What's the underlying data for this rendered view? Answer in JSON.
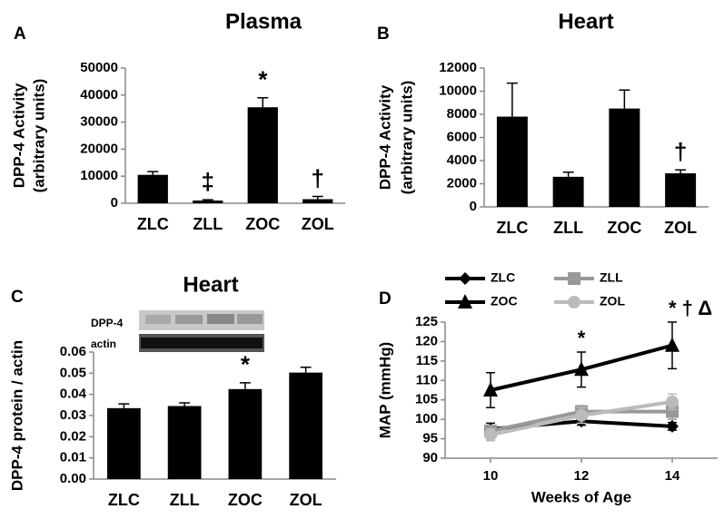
{
  "chart_data": [
    {
      "type": "bar",
      "panel": "A",
      "title": "Plasma",
      "ylabel": [
        "DPP-4 Activity",
        "(arbitrary units)"
      ],
      "categories": [
        "ZLC",
        "ZLL",
        "ZOC",
        "ZOL"
      ],
      "values": [
        10500,
        1000,
        35500,
        1500
      ],
      "errors": [
        1200,
        300,
        3500,
        1000
      ],
      "annotations": [
        null,
        "‡",
        "*",
        "†"
      ],
      "color": "#000000",
      "ylim": [
        0,
        50000
      ],
      "yticks": [
        0,
        10000,
        20000,
        30000,
        40000,
        50000
      ]
    },
    {
      "type": "bar",
      "panel": "B",
      "title": "Heart",
      "ylabel": [
        "DPP-4 Activity",
        "(arbitrary units)"
      ],
      "categories": [
        "ZLC",
        "ZLL",
        "ZOC",
        "ZOL"
      ],
      "values": [
        7800,
        2600,
        8500,
        2900
      ],
      "errors": [
        2900,
        400,
        1600,
        300
      ],
      "annotations": [
        null,
        null,
        null,
        "†"
      ],
      "color": "#000000",
      "ylim": [
        0,
        12000
      ],
      "yticks": [
        0,
        2000,
        4000,
        6000,
        8000,
        10000,
        12000
      ]
    },
    {
      "type": "bar",
      "panel": "C",
      "title": "Heart",
      "ylabel": [
        "DPP-4  protein / actin"
      ],
      "blot_labels": [
        "DPP-4",
        "actin"
      ],
      "categories": [
        "ZLC",
        "ZLL",
        "ZOC",
        "ZOL"
      ],
      "values": [
        0.0335,
        0.0345,
        0.0425,
        0.0503
      ],
      "errors": [
        0.002,
        0.0015,
        0.003,
        0.0025
      ],
      "annotations": [
        null,
        null,
        "*",
        null
      ],
      "color": "#000000",
      "ylim": [
        0,
        0.06
      ],
      "yticks": [
        {
          "value": 0,
          "label": "0.00"
        },
        0.01,
        0.02,
        0.03,
        0.04,
        0.05,
        0.06
      ]
    },
    {
      "type": "line",
      "panel": "D",
      "ylabel": [
        "MAP (mmHg)"
      ],
      "xlabel": "Weeks of Age",
      "x": [
        10,
        12,
        14
      ],
      "xlim": [
        9,
        15
      ],
      "xticks": [
        10,
        12,
        14
      ],
      "ylim": [
        90,
        125
      ],
      "yticks": [
        90,
        95,
        100,
        105,
        110,
        115,
        120,
        125
      ],
      "annotations": [
        null,
        "*",
        "* † Δ"
      ],
      "series": [
        {
          "name": "ZLC",
          "color": "#000000",
          "marker": "diamond",
          "values": [
            97.5,
            99.5,
            98.2
          ],
          "errors": [
            1.5,
            1,
            1
          ]
        },
        {
          "name": "ZLL",
          "color": "#999999",
          "marker": "square",
          "values": [
            97,
            102,
            102
          ],
          "errors": [
            1.5,
            1.5,
            2
          ]
        },
        {
          "name": "ZOC",
          "color": "#000000",
          "marker": "triangle",
          "values": [
            107.5,
            112.8,
            119
          ],
          "errors": [
            4.5,
            4.5,
            6
          ]
        },
        {
          "name": "ZOL",
          "color": "#bbbbbb",
          "marker": "circle",
          "values": [
            96,
            101,
            104.5
          ],
          "errors": [
            1.5,
            2,
            2
          ]
        }
      ]
    }
  ]
}
